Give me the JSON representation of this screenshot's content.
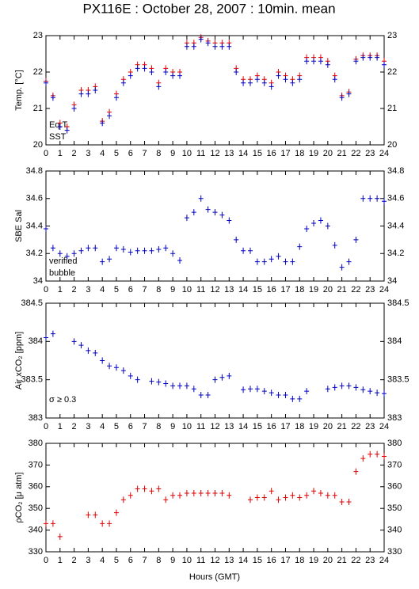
{
  "title": "PX116E : October 28, 2007 : 10min. mean",
  "xlabel": "Hours (GMT)",
  "chart_data": [
    {
      "type": "scatter",
      "ylabel": "Temp. [°C]",
      "xlim": [
        0,
        24
      ],
      "xticks": [
        0,
        1,
        2,
        3,
        4,
        5,
        6,
        7,
        8,
        9,
        10,
        11,
        12,
        13,
        14,
        15,
        16,
        17,
        18,
        19,
        20,
        21,
        22,
        23,
        24
      ],
      "ylim": [
        20,
        23
      ],
      "yticks": [
        20,
        21,
        22,
        23
      ],
      "x": [
        0,
        0.5,
        1,
        1.5,
        2,
        2.5,
        3,
        3.5,
        4,
        4.5,
        5,
        5.5,
        6,
        6.5,
        7,
        7.5,
        8,
        8.5,
        9,
        9.5,
        10,
        10.5,
        11,
        11.5,
        12,
        12.5,
        13,
        13.5,
        14,
        14.5,
        15,
        15.5,
        16,
        16.5,
        17,
        17.5,
        18,
        18.5,
        19,
        19.5,
        20,
        20.5,
        21,
        21.5,
        22,
        22.5,
        23,
        23.5,
        24
      ],
      "series": [
        {
          "name": "Eq.T",
          "color": "#e00000",
          "values": [
            21.75,
            21.35,
            20.6,
            20.5,
            21.1,
            21.5,
            21.5,
            21.6,
            20.65,
            20.9,
            21.4,
            21.8,
            22.0,
            22.2,
            22.2,
            22.1,
            21.7,
            22.1,
            22.0,
            22.0,
            22.8,
            22.8,
            22.95,
            22.85,
            22.8,
            22.8,
            22.8,
            22.1,
            21.8,
            21.8,
            21.9,
            21.8,
            21.7,
            22.0,
            21.9,
            21.8,
            21.9,
            22.4,
            22.4,
            22.4,
            22.3,
            21.9,
            21.35,
            21.45,
            22.35,
            22.45,
            22.45,
            22.45,
            22.3
          ]
        },
        {
          "name": "SST",
          "color": "#0000c0",
          "values": [
            21.7,
            21.3,
            20.5,
            20.4,
            21.0,
            21.4,
            21.4,
            21.5,
            20.6,
            20.8,
            21.3,
            21.7,
            21.9,
            22.1,
            22.1,
            22.0,
            21.6,
            22.0,
            21.9,
            21.9,
            22.7,
            22.7,
            22.9,
            22.8,
            22.7,
            22.7,
            22.7,
            22.0,
            21.7,
            21.7,
            21.8,
            21.7,
            21.6,
            21.9,
            21.8,
            21.7,
            21.8,
            22.3,
            22.3,
            22.3,
            22.2,
            21.8,
            21.3,
            21.4,
            22.3,
            22.4,
            22.4,
            22.4,
            22.2
          ]
        }
      ]
    },
    {
      "type": "scatter",
      "ylabel": "SBE Sal",
      "xlim": [
        0,
        24
      ],
      "xticks": [
        0,
        1,
        2,
        3,
        4,
        5,
        6,
        7,
        8,
        9,
        10,
        11,
        12,
        13,
        14,
        15,
        16,
        17,
        18,
        19,
        20,
        21,
        22,
        23,
        24
      ],
      "ylim": [
        34,
        34.8
      ],
      "yticks": [
        34,
        34.2,
        34.4,
        34.6,
        34.8
      ],
      "x": [
        0,
        0.5,
        1,
        1.5,
        2,
        2.5,
        3,
        3.5,
        4,
        4.5,
        5,
        5.5,
        6,
        6.5,
        7,
        7.5,
        8,
        8.5,
        9,
        9.5,
        10,
        10.5,
        11,
        11.5,
        12,
        12.5,
        13,
        13.5,
        14,
        14.5,
        15,
        15.5,
        16,
        16.5,
        17,
        17.5,
        18,
        18.5,
        19,
        19.5,
        20,
        20.5,
        21,
        21.5,
        22,
        22.5,
        23,
        23.5,
        24
      ],
      "series": [
        {
          "name": "verified",
          "color": "#0000c0",
          "values": [
            34.38,
            34.24,
            34.2,
            34.18,
            34.2,
            34.22,
            34.24,
            34.24,
            34.14,
            34.16,
            34.24,
            34.23,
            34.21,
            34.22,
            34.22,
            34.22,
            34.23,
            34.24,
            34.2,
            34.15,
            34.46,
            34.5,
            34.6,
            34.52,
            34.5,
            34.48,
            34.44,
            34.3,
            34.22,
            34.22,
            34.14,
            34.14,
            34.16,
            34.18,
            34.14,
            34.14,
            34.25,
            34.38,
            34.42,
            34.44,
            34.4,
            34.26,
            34.1,
            34.14,
            34.3,
            34.6,
            34.6,
            34.6,
            34.58
          ]
        },
        {
          "name": "bubble",
          "color": "#d000d0",
          "values": [
            null,
            null,
            null,
            null,
            null,
            null,
            null,
            null,
            null,
            null,
            null,
            null,
            null,
            null,
            null,
            null,
            null,
            null,
            null,
            null,
            null,
            null,
            null,
            null,
            null,
            null,
            null,
            null,
            null,
            null,
            null,
            null,
            null,
            null,
            null,
            null,
            null,
            null,
            null,
            null,
            null,
            null,
            null,
            null,
            null,
            null,
            null,
            null,
            null
          ]
        }
      ]
    },
    {
      "type": "scatter",
      "ylabel": "Air xCO₂ [ppm]",
      "annotation": "σ ≥ 0.3",
      "annotation_color": "#d000d0",
      "xlim": [
        0,
        24
      ],
      "xticks": [
        0,
        1,
        2,
        3,
        4,
        5,
        6,
        7,
        8,
        9,
        10,
        11,
        12,
        13,
        14,
        15,
        16,
        17,
        18,
        19,
        20,
        21,
        22,
        23,
        24
      ],
      "ylim": [
        383,
        384.5
      ],
      "yticks": [
        383,
        383.5,
        384,
        384.5
      ],
      "x": [
        0,
        0.5,
        1,
        1.5,
        2,
        2.5,
        3,
        3.5,
        4,
        4.5,
        5,
        5.5,
        6,
        6.5,
        7,
        7.5,
        8,
        8.5,
        9,
        9.5,
        10,
        10.5,
        11,
        11.5,
        12,
        12.5,
        13,
        13.5,
        14,
        14.5,
        15,
        15.5,
        16,
        16.5,
        17,
        17.5,
        18,
        18.5,
        19,
        19.5,
        20,
        20.5,
        21,
        21.5,
        22,
        22.5,
        23,
        23.5,
        24
      ],
      "series": [
        {
          "color": "#0000c0",
          "values": [
            384.05,
            384.1,
            null,
            null,
            384.0,
            383.95,
            383.88,
            383.85,
            383.75,
            383.68,
            383.66,
            383.62,
            383.55,
            383.5,
            null,
            383.48,
            383.47,
            383.45,
            383.42,
            383.42,
            383.42,
            383.38,
            383.3,
            383.3,
            383.5,
            383.53,
            383.55,
            null,
            383.37,
            383.38,
            383.38,
            383.35,
            383.33,
            383.3,
            383.3,
            383.25,
            383.25,
            383.35,
            null,
            null,
            383.38,
            383.4,
            383.42,
            383.42,
            383.4,
            383.37,
            383.35,
            383.33,
            383.32
          ]
        }
      ]
    },
    {
      "type": "scatter",
      "ylabel": "ρCO₂ [μ atm]",
      "xlim": [
        0,
        24
      ],
      "xticks": [
        0,
        1,
        2,
        3,
        4,
        5,
        6,
        7,
        8,
        9,
        10,
        11,
        12,
        13,
        14,
        15,
        16,
        17,
        18,
        19,
        20,
        21,
        22,
        23,
        24
      ],
      "ylim": [
        330,
        380
      ],
      "yticks": [
        330,
        340,
        350,
        360,
        370,
        380
      ],
      "x": [
        0,
        0.5,
        1,
        1.5,
        2,
        2.5,
        3,
        3.5,
        4,
        4.5,
        5,
        5.5,
        6,
        6.5,
        7,
        7.5,
        8,
        8.5,
        9,
        9.5,
        10,
        10.5,
        11,
        11.5,
        12,
        12.5,
        13,
        13.5,
        14,
        14.5,
        15,
        15.5,
        16,
        16.5,
        17,
        17.5,
        18,
        18.5,
        19,
        19.5,
        20,
        20.5,
        21,
        21.5,
        22,
        22.5,
        23,
        23.5,
        24
      ],
      "series": [
        {
          "color": "#e00000",
          "values": [
            343,
            343,
            337,
            null,
            null,
            null,
            347,
            347,
            343,
            343,
            348,
            354,
            356,
            359,
            359,
            358,
            359,
            354,
            356,
            356,
            357,
            357,
            357,
            357,
            357,
            357,
            356,
            null,
            null,
            354,
            355,
            355,
            358,
            354,
            355,
            356,
            355,
            356,
            358,
            357,
            356,
            356,
            353,
            353,
            367,
            373,
            375,
            375,
            374
          ]
        }
      ]
    }
  ]
}
